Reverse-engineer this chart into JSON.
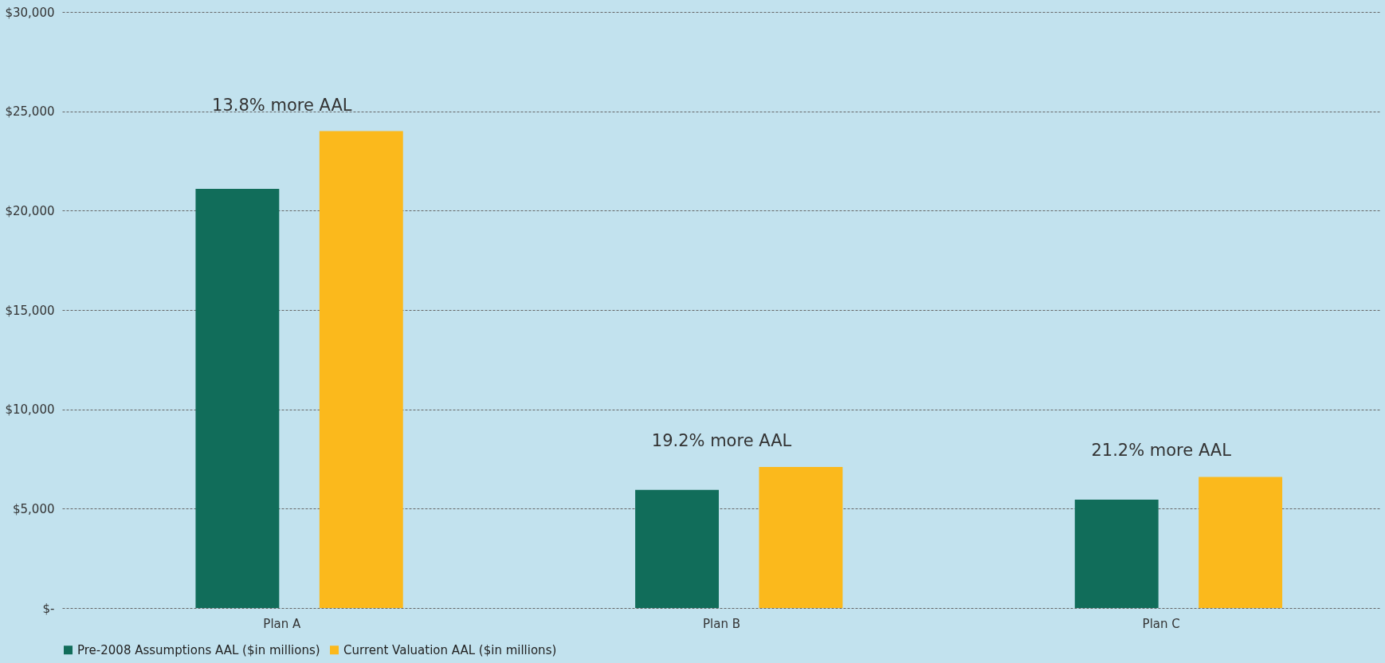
{
  "chart_data": {
    "type": "bar",
    "categories": [
      "Plan A",
      "Plan B",
      "Plan C"
    ],
    "series": [
      {
        "name": "Pre-2008 Assumptions AAL ($in millions)",
        "color": "#116d5a",
        "values": [
          21100,
          5950,
          5450
        ]
      },
      {
        "name": "Current Valuation AAL ($in millions)",
        "color": "#fbb91c",
        "values": [
          24000,
          7100,
          6600
        ]
      }
    ],
    "ylim": [
      0,
      30000
    ],
    "yticks": [
      {
        "value": 0,
        "label": "$-"
      },
      {
        "value": 5000,
        "label": "$5,000"
      },
      {
        "value": 10000,
        "label": "$10,000"
      },
      {
        "value": 15000,
        "label": "$15,000"
      },
      {
        "value": 20000,
        "label": "$20,000"
      },
      {
        "value": 25000,
        "label": "$25,000"
      },
      {
        "value": 30000,
        "label": "$30,000"
      }
    ],
    "annotations": [
      "13.8% more AAL",
      "19.2% more AAL",
      "21.2% more AAL"
    ],
    "grid": "y",
    "legend": "bottom"
  }
}
